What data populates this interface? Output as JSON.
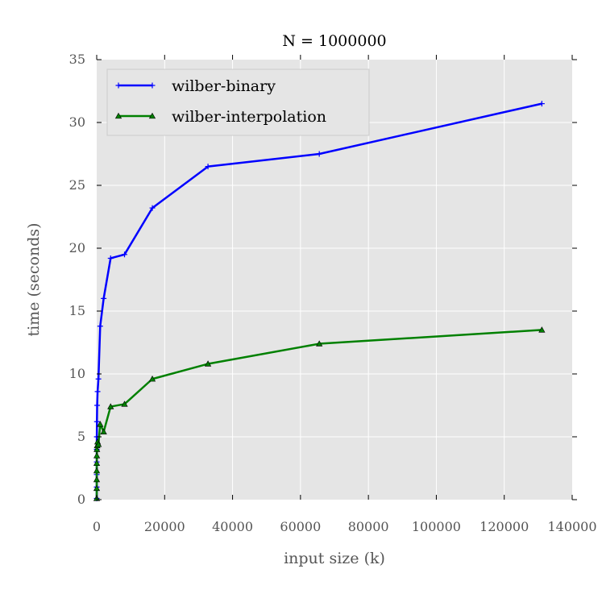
{
  "chart_data": {
    "type": "line",
    "title": "N = 1000000",
    "xlabel": "input size (k)",
    "ylabel": "time (seconds)",
    "xlim": [
      0,
      140000
    ],
    "ylim": [
      0,
      35
    ],
    "xticks": [
      0,
      20000,
      40000,
      60000,
      80000,
      100000,
      120000,
      140000
    ],
    "yticks": [
      0,
      5,
      10,
      15,
      20,
      25,
      30,
      35
    ],
    "grid": true,
    "legend_position": "top-left",
    "series": [
      {
        "name": "wilber-binary",
        "color": "#0000ff",
        "marker": "plus",
        "x": [
          1,
          2,
          4,
          8,
          16,
          32,
          64,
          128,
          256,
          512,
          1024,
          2048,
          4096,
          8192,
          16384,
          32768,
          65536,
          131072
        ],
        "y": [
          0.1,
          1.0,
          2.0,
          3.0,
          4.0,
          5.0,
          6.2,
          7.5,
          8.6,
          9.6,
          13.8,
          16.0,
          19.2,
          19.5,
          23.2,
          26.5,
          27.5,
          31.5
        ]
      },
      {
        "name": "wilber-interpolation",
        "color": "#008000",
        "marker": "triangle",
        "x": [
          1,
          2,
          4,
          8,
          16,
          32,
          64,
          128,
          256,
          512,
          1024,
          2048,
          4096,
          8192,
          16384,
          32768,
          65536,
          131072
        ],
        "y": [
          0.1,
          0.9,
          1.6,
          2.3,
          2.9,
          3.5,
          4.0,
          4.3,
          4.6,
          4.4,
          6.0,
          5.4,
          7.4,
          7.6,
          9.6,
          10.8,
          12.4,
          13.5
        ]
      }
    ]
  }
}
